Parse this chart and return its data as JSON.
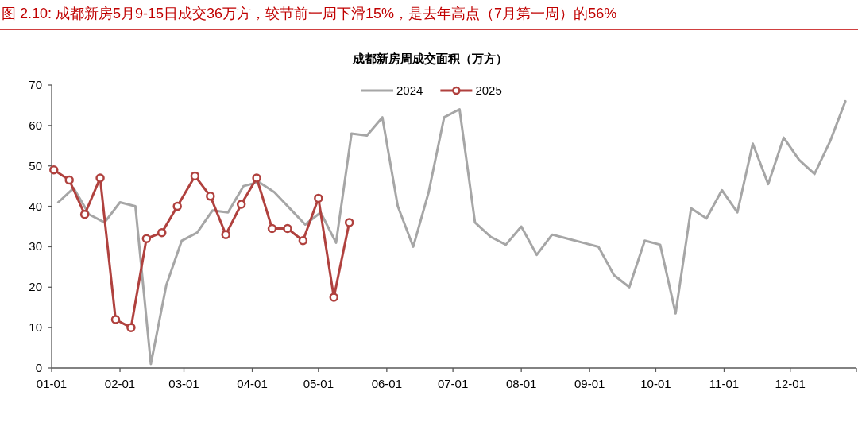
{
  "chart_data": {
    "type": "line",
    "title": "图 2.10: 成都新房5月9-15日成交36万方，较节前一周下滑15%，是去年高点（7月第一周）的56%",
    "subtitle": "成都新房周成交面积（万方）",
    "xlim": [
      "--01-01",
      "--12-31"
    ],
    "xticks": [
      {
        "value": "--01-01",
        "label": "01-01"
      },
      {
        "value": "--02-01",
        "label": "02-01"
      },
      {
        "value": "--03-01",
        "label": "03-01"
      },
      {
        "value": "--04-01",
        "label": "04-01"
      },
      {
        "value": "--05-01",
        "label": "05-01"
      },
      {
        "value": "--06-01",
        "label": "06-01"
      },
      {
        "value": "--07-01",
        "label": "07-01"
      },
      {
        "value": "--08-01",
        "label": "08-01"
      },
      {
        "value": "--09-01",
        "label": "09-01"
      },
      {
        "value": "--10-01",
        "label": "10-01"
      },
      {
        "value": "--11-01",
        "label": "11-01"
      },
      {
        "value": "--12-01",
        "label": "12-01"
      },
      {
        "value": "--12-31",
        "label": null
      }
    ],
    "ylim": [
      0,
      70
    ],
    "yticks": [
      0,
      10,
      20,
      30,
      40,
      50,
      60,
      70
    ],
    "grid": false,
    "legend": "top",
    "line_style": "solid",
    "series": [
      {
        "name": "2024",
        "color": "#a6a6a6",
        "marker": "none",
        "x": [
          "--01-04",
          "--01-11",
          "--01-18",
          "--01-25",
          "--02-01",
          "--02-08",
          "--02-15",
          "--02-22",
          "--02-29",
          "--03-07",
          "--03-14",
          "--03-21",
          "--03-28",
          "--04-04",
          "--04-11",
          "--04-18",
          "--04-25",
          "--05-02",
          "--05-09",
          "--05-16",
          "--05-23",
          "--05-30",
          "--06-06",
          "--06-13",
          "--06-20",
          "--06-27",
          "--07-04",
          "--07-11",
          "--07-18",
          "--07-25",
          "--08-01",
          "--08-08",
          "--08-15",
          "--08-22",
          "--08-29",
          "--09-05",
          "--09-12",
          "--09-19",
          "--09-26",
          "--10-03",
          "--10-10",
          "--10-17",
          "--10-24",
          "--10-31",
          "--11-07",
          "--11-14",
          "--11-21",
          "--11-28",
          "--12-05",
          "--12-12",
          "--12-19",
          "--12-26"
        ],
        "values": [
          41,
          44.5,
          38,
          36,
          41,
          40,
          1,
          20.5,
          31.5,
          33.5,
          39,
          38.5,
          45,
          46,
          43.5,
          39.5,
          35.5,
          38.5,
          31,
          58,
          57.5,
          62,
          40,
          30,
          43.5,
          62,
          64,
          36,
          32.5,
          30.5,
          35,
          28,
          33,
          32,
          31,
          30,
          23,
          20,
          31.5,
          30.5,
          13.5,
          39.5,
          37,
          44,
          38.5,
          55.5,
          45.5,
          57,
          51.5,
          48,
          56,
          66
        ]
      },
      {
        "name": "2025",
        "color": "#b0413e",
        "marker": "circle",
        "x": [
          "--01-02",
          "--01-09",
          "--01-16",
          "--01-23",
          "--01-30",
          "--02-06",
          "--02-13",
          "--02-20",
          "--02-27",
          "--03-06",
          "--03-13",
          "--03-20",
          "--03-27",
          "--04-03",
          "--04-10",
          "--04-17",
          "--04-24",
          "--05-01",
          "--05-08",
          "--05-15"
        ],
        "values": [
          49,
          46.5,
          38,
          47,
          12,
          10,
          32,
          33.5,
          40,
          47.5,
          42.5,
          33,
          40.5,
          47,
          34.5,
          34.5,
          31.5,
          42,
          17.5,
          36
        ]
      }
    ]
  }
}
